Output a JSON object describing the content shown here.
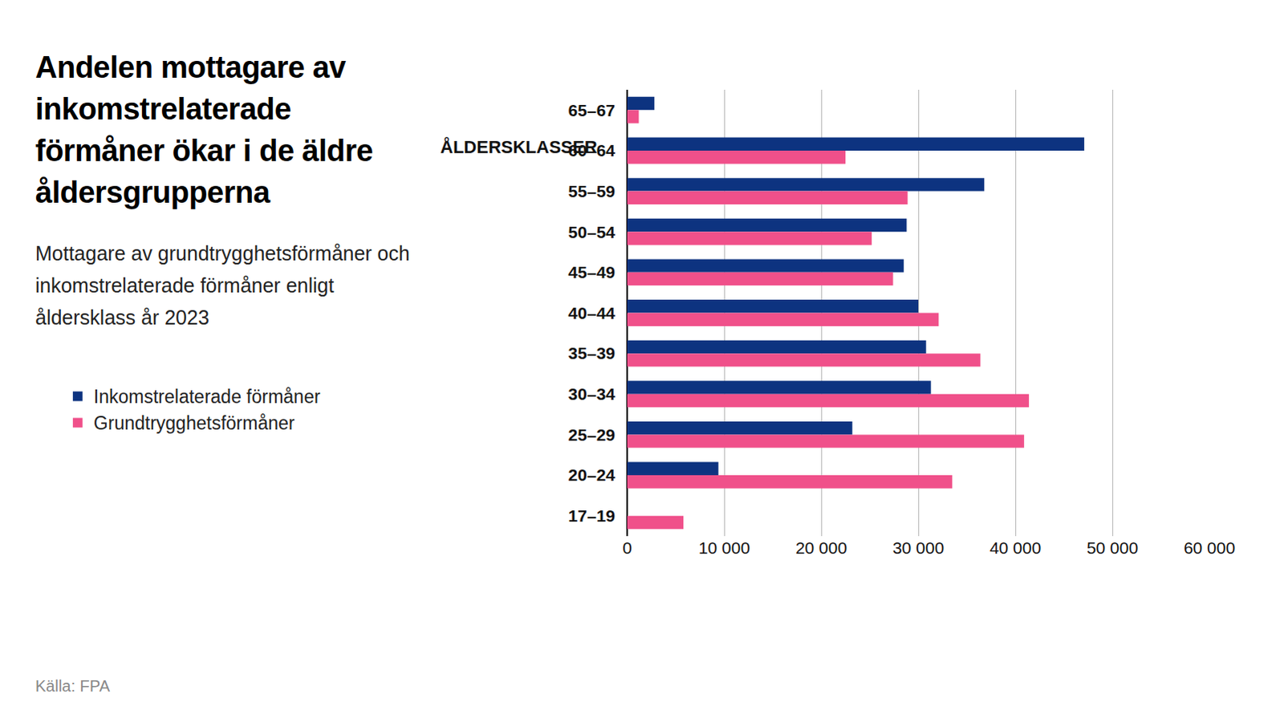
{
  "chart_data": {
    "type": "bar",
    "orientation": "horizontal",
    "title": "Andelen mottagare av inkomstrelaterade förmåner ökar i de äldre åldersgrupperna",
    "subtitle": "Mottagare av grundtrygghetsförmåner och inkomstrelaterade förmåner enligt åldersklass år 2023",
    "source": "Källa: FPA",
    "ylabel": "ÅLDERSKLASSER",
    "categories": [
      "65–67",
      "60–64",
      "55–59",
      "50–54",
      "45–49",
      "40–44",
      "35–39",
      "30–34",
      "25–29",
      "20–24",
      "17–19"
    ],
    "series": [
      {
        "name": "Inkomstrelaterade förmåner",
        "color": "#0d3380",
        "values": [
          2800,
          47100,
          36800,
          28800,
          28500,
          30000,
          30800,
          31300,
          23200,
          9400,
          0
        ]
      },
      {
        "name": "Grundtrygghetsförmåner",
        "color": "#f0508a",
        "values": [
          1200,
          22500,
          28900,
          25200,
          27400,
          32100,
          36400,
          41400,
          40900,
          33500,
          5800
        ]
      }
    ],
    "xlim": [
      0,
      60000
    ],
    "xticks": [
      0,
      {
        "value": 10000,
        "label": "10 000"
      },
      {
        "value": 20000,
        "label": "20 000"
      },
      {
        "value": 30000,
        "label": "30 000"
      },
      {
        "value": 40000,
        "label": "40 000"
      },
      {
        "value": 50000,
        "label": "50 000"
      },
      {
        "value": 60000,
        "label": "60 000"
      }
    ],
    "grid": true,
    "legend": "left"
  }
}
